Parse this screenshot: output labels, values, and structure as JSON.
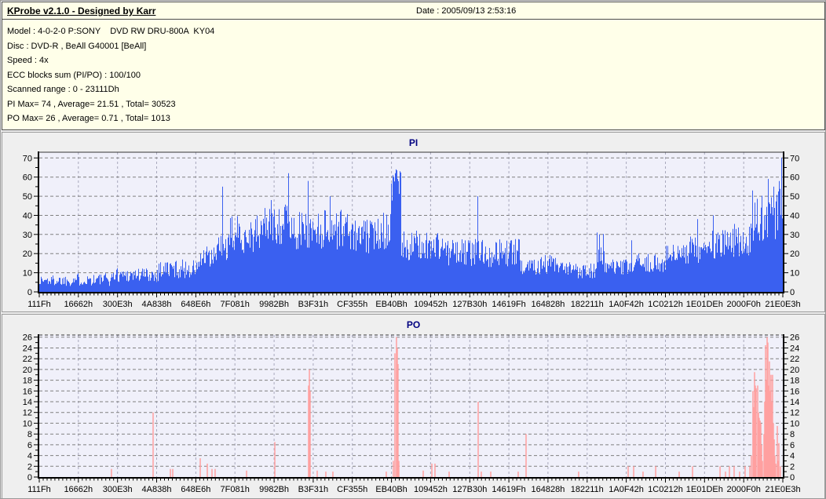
{
  "window": {
    "title": "KProbe v2.1.0 - Designed by Karr",
    "date_label": "Date : 2005/09/13 2:53:16"
  },
  "info": {
    "lines": [
      "Model : 4-0-2-0 P:SONY    DVD RW DRU-800A  KY04",
      "Disc : DVD-R , BeAll G40001 [BeAll]",
      "Speed : 4x",
      "ECC blocks sum (PI/PO) : 100/100",
      "Scanned range : 0 - 23111Dh",
      "PI Max= 74 , Average= 21.51 , Total= 30523",
      "PO Max= 26 , Average= 0.71 , Total= 1013"
    ]
  },
  "colors": {
    "header_bg": "#FFFFE9",
    "panel_bg": "#EFEFEF",
    "plot_bg": "#F0F0FA",
    "chart_title": "#000080",
    "grid_major": "#808080",
    "grid_minor": "#A8A8BC",
    "axis": "#000000",
    "pi_bar": "#3A60F0",
    "po_bar": "#FFA0A0"
  },
  "chart_data": [
    {
      "type": "bar",
      "title": "PI",
      "summary": {
        "max": 74,
        "average": 21.51,
        "total": 30523
      },
      "ylim": [
        0,
        73
      ],
      "yticks": [
        0,
        10,
        20,
        30,
        40,
        50,
        60,
        70
      ],
      "y_axis_sides": "both",
      "grid": "dashed horizontal at each ytick, dashed vertical at each x tick",
      "bar_color": "#3A60F0",
      "x_tick_labels": [
        "111Fh",
        "16662h",
        "300E3h",
        "4A838h",
        "648E6h",
        "7F081h",
        "9982Bh",
        "B3F31h",
        "CF355h",
        "EB40Bh",
        "109452h",
        "127B30h",
        "14619Fh",
        "164828h",
        "182211h",
        "1A0F42h",
        "1C0212h",
        "1E01DEh",
        "2000F0h",
        "21E0E3h"
      ],
      "noise_seed": 1337,
      "series_envelope_segments": [
        [
          0.0,
          0.045,
          3,
          9
        ],
        [
          0.045,
          0.098,
          3,
          10
        ],
        [
          0.098,
          0.16,
          5,
          13
        ],
        [
          0.16,
          0.214,
          7,
          17
        ],
        [
          0.214,
          0.237,
          10,
          24
        ],
        [
          0.237,
          0.256,
          16,
          30
        ],
        [
          0.256,
          0.298,
          20,
          40
        ],
        [
          0.298,
          0.338,
          24,
          48
        ],
        [
          0.338,
          0.368,
          22,
          42
        ],
        [
          0.368,
          0.419,
          22,
          44
        ],
        [
          0.419,
          0.452,
          20,
          38
        ],
        [
          0.452,
          0.473,
          22,
          45
        ],
        [
          0.473,
          0.486,
          45,
          64
        ],
        [
          0.486,
          0.546,
          16,
          32
        ],
        [
          0.546,
          0.59,
          13,
          28
        ],
        [
          0.59,
          0.646,
          13,
          28
        ],
        [
          0.646,
          0.694,
          9,
          20
        ],
        [
          0.694,
          0.75,
          7,
          16
        ],
        [
          0.75,
          0.76,
          12,
          31
        ],
        [
          0.76,
          0.799,
          8,
          17
        ],
        [
          0.799,
          0.842,
          10,
          20
        ],
        [
          0.842,
          0.873,
          13,
          25
        ],
        [
          0.873,
          0.9,
          15,
          30
        ],
        [
          0.9,
          0.931,
          15,
          33
        ],
        [
          0.931,
          0.961,
          18,
          36
        ],
        [
          0.961,
          0.993,
          26,
          52
        ],
        [
          0.993,
          1.0,
          35,
          60
        ]
      ],
      "spikes": [
        [
          0.246,
          55
        ],
        [
          0.335,
          62
        ],
        [
          0.362,
          58
        ],
        [
          0.391,
          50
        ],
        [
          0.477,
          60
        ],
        [
          0.479,
          62
        ],
        [
          0.48,
          64
        ],
        [
          0.482,
          59
        ],
        [
          0.59,
          50
        ],
        [
          0.75,
          31
        ],
        [
          0.797,
          27
        ],
        [
          0.886,
          38
        ],
        [
          0.907,
          40
        ],
        [
          0.96,
          53
        ],
        [
          0.981,
          59
        ],
        [
          0.988,
          55
        ],
        [
          0.999,
          70
        ]
      ]
    },
    {
      "type": "bar",
      "title": "PO",
      "summary": {
        "max": 26,
        "average": 0.71,
        "total": 1013
      },
      "ylim": [
        0,
        26.4
      ],
      "yticks": [
        0,
        2,
        4,
        6,
        8,
        10,
        12,
        14,
        16,
        18,
        20,
        22,
        24,
        26
      ],
      "y_axis_sides": "both",
      "grid": "dashed horizontal at each ytick, dashed vertical at each x tick",
      "bar_color": "#FFA0A0",
      "x_tick_labels": [
        "111Fh",
        "16662h",
        "300E3h",
        "4A838h",
        "648E6h",
        "7F081h",
        "9982Bh",
        "B3F31h",
        "CF355h",
        "EB40Bh",
        "109452h",
        "127B30h",
        "14619Fh",
        "164828h",
        "182211h",
        "1A0F42h",
        "1C0212h",
        "1E01DEh",
        "2000F0h",
        "21E0E3h"
      ],
      "bars": [
        [
          0.0971,
          1.5
        ],
        [
          0.1531,
          12
        ],
        [
          0.1764,
          1.5
        ],
        [
          0.1795,
          1.5
        ],
        [
          0.2165,
          3.5
        ],
        [
          0.226,
          2.5
        ],
        [
          0.2323,
          1.5
        ],
        [
          0.2365,
          1.5
        ],
        [
          0.2788,
          1.2
        ],
        [
          0.3168,
          6.5
        ],
        [
          0.3622,
          17
        ],
        [
          0.3633,
          20
        ],
        [
          0.3643,
          16
        ],
        [
          0.3738,
          1.2
        ],
        [
          0.3854,
          1
        ],
        [
          0.3949,
          1
        ],
        [
          0.4667,
          1
        ],
        [
          0.4762,
          3
        ],
        [
          0.4783,
          23
        ],
        [
          0.4804,
          26
        ],
        [
          0.4815,
          24
        ],
        [
          0.4825,
          21
        ],
        [
          0.4836,
          3
        ],
        [
          0.5164,
          1.2
        ],
        [
          0.528,
          2.5
        ],
        [
          0.5322,
          2.5
        ],
        [
          0.5512,
          1
        ],
        [
          0.5903,
          14
        ],
        [
          0.5945,
          1
        ],
        [
          0.6072,
          1
        ],
        [
          0.6441,
          1
        ],
        [
          0.6547,
          8
        ],
        [
          0.7254,
          1
        ],
        [
          0.792,
          2
        ],
        [
          0.7994,
          2
        ],
        [
          0.812,
          1
        ],
        [
          0.829,
          2
        ],
        [
          0.8606,
          1
        ],
        [
          0.8786,
          2
        ],
        [
          0.9156,
          2
        ],
        [
          0.9229,
          1
        ],
        [
          0.9282,
          2
        ],
        [
          0.9345,
          2
        ],
        [
          0.9419,
          1
        ],
        [
          0.9493,
          2
        ],
        [
          0.9556,
          2
        ],
        [
          0.9577,
          4
        ],
        [
          0.9598,
          16
        ],
        [
          0.9609,
          13
        ],
        [
          0.962,
          19.5
        ],
        [
          0.963,
          17
        ],
        [
          0.9641,
          16.5
        ],
        [
          0.9662,
          17
        ],
        [
          0.9673,
          12
        ],
        [
          0.9683,
          11
        ],
        [
          0.9694,
          10.5
        ],
        [
          0.9704,
          10
        ],
        [
          0.9715,
          6
        ],
        [
          0.9726,
          3
        ],
        [
          0.9747,
          8
        ],
        [
          0.9757,
          14
        ],
        [
          0.9768,
          24.5
        ],
        [
          0.9778,
          18
        ],
        [
          0.9789,
          26
        ],
        [
          0.9799,
          25
        ],
        [
          0.981,
          17
        ],
        [
          0.982,
          21.5
        ],
        [
          0.9831,
          16
        ],
        [
          0.9841,
          19
        ],
        [
          0.9852,
          14
        ],
        [
          0.9862,
          19
        ],
        [
          0.9873,
          10
        ],
        [
          0.9884,
          7
        ],
        [
          0.9894,
          4
        ],
        [
          0.9905,
          2.5
        ],
        [
          0.9926,
          9.5
        ],
        [
          0.9936,
          3
        ],
        [
          0.9947,
          6.3
        ],
        [
          0.9968,
          2
        ]
      ]
    }
  ]
}
